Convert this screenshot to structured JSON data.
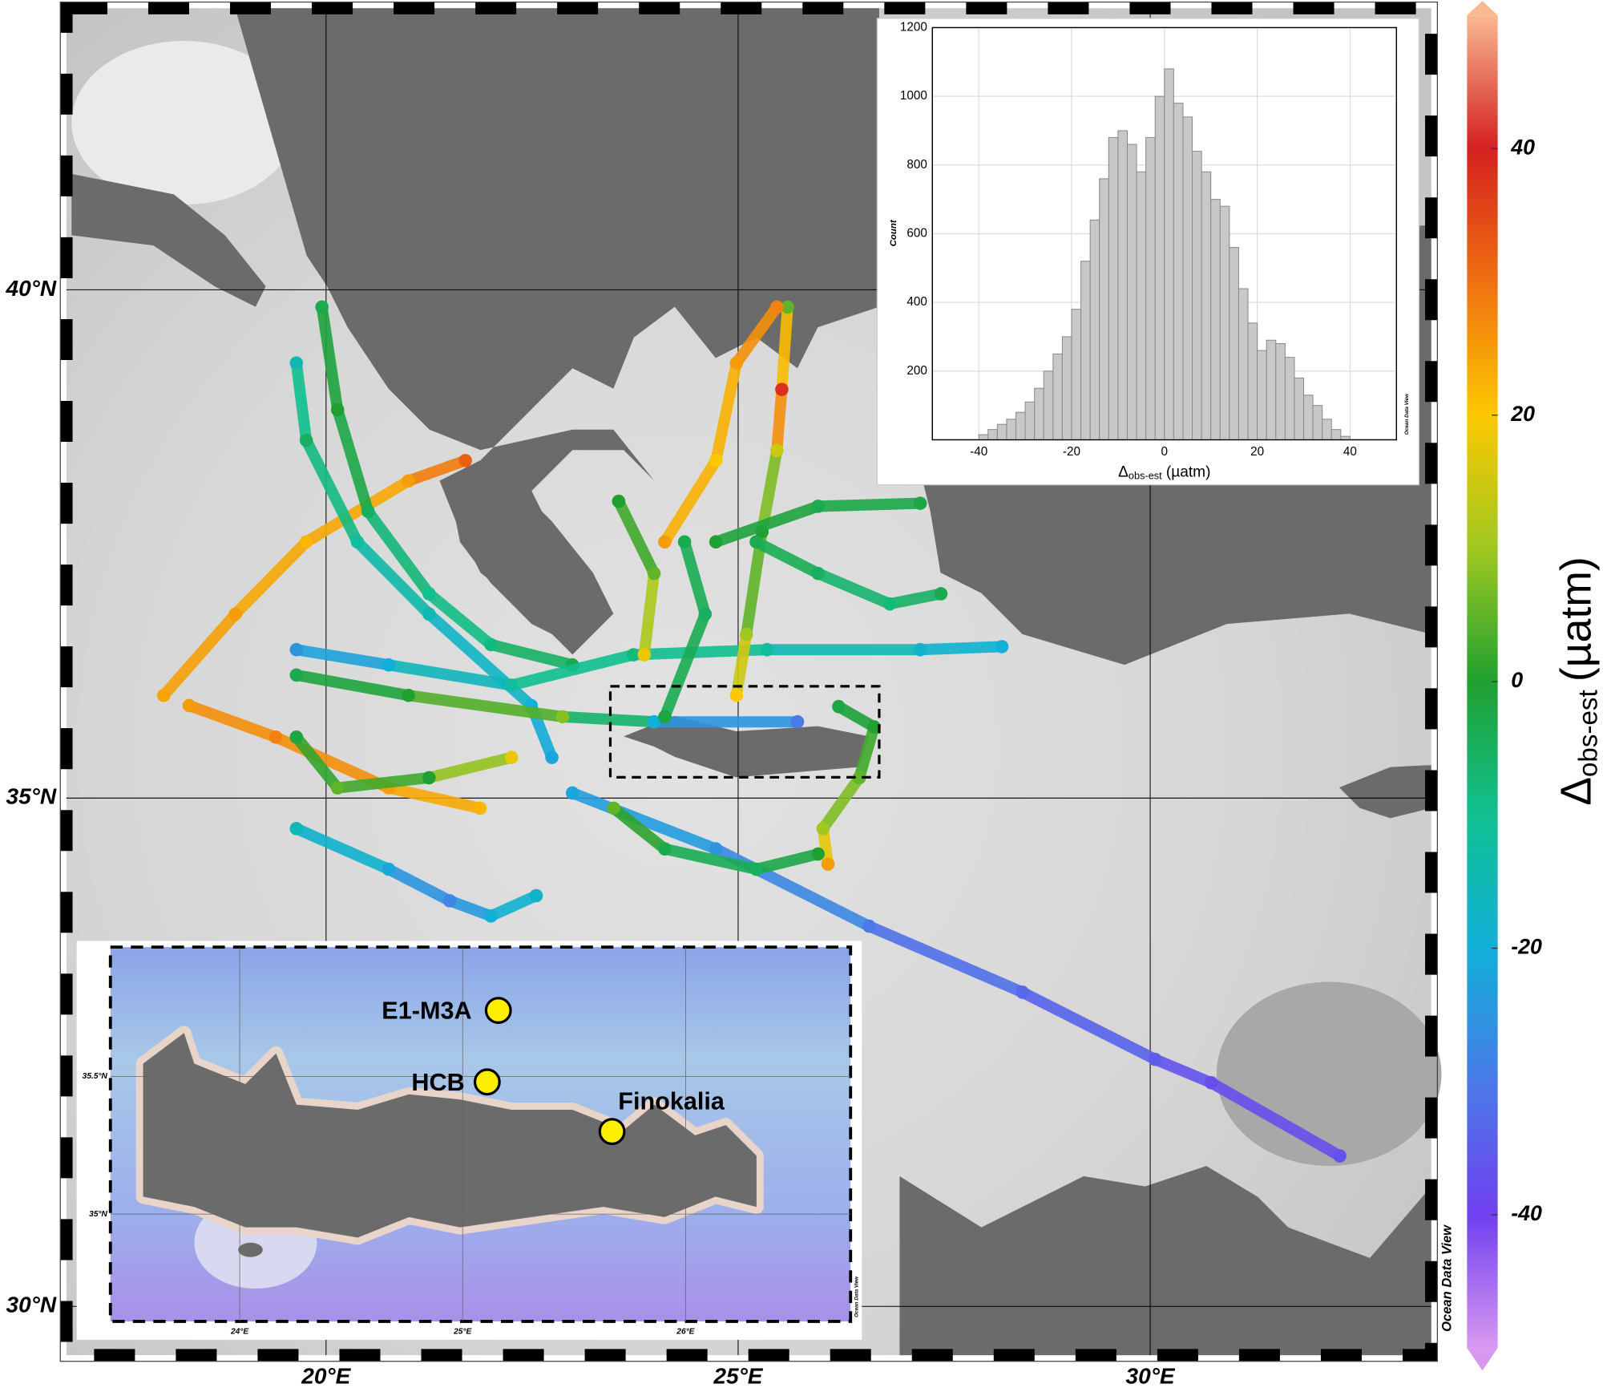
{
  "map": {
    "lonlim": [
      16.85,
      33.41
    ],
    "latlim": [
      29.52,
      42.77
    ],
    "lonticks": [
      {
        "value": 20,
        "label": "20°E"
      },
      {
        "value": 25,
        "label": "25°E"
      },
      {
        "value": 30,
        "label": "30°E"
      }
    ],
    "latticks": [
      {
        "value": 30,
        "label": "30°N"
      },
      {
        "value": 35,
        "label": "35°N"
      },
      {
        "value": 40,
        "label": "40°N"
      }
    ],
    "credit": "Ocean Data View",
    "tracks": [
      {
        "lon": [
          22.99,
          24.73,
          26.59,
          28.45,
          30.06,
          30.74,
          32.3
        ],
        "lat": [
          35.05,
          34.5,
          33.74,
          33.09,
          32.43,
          32.2,
          31.48
        ],
        "values": [
          -22,
          -25,
          -30,
          -33,
          -35,
          -38,
          -37
        ]
      },
      {
        "lon": [
          21.69,
          21.0,
          19.76,
          18.9,
          18.03
        ],
        "lat": [
          38.32,
          38.12,
          37.52,
          36.81,
          36.01
        ],
        "values": [
          32,
          25,
          22,
          25,
          24
        ]
      },
      {
        "lon": [
          18.34,
          19.39,
          20.76,
          21.87
        ],
        "lat": [
          35.91,
          35.6,
          35.1,
          34.9
        ],
        "values": [
          25,
          28,
          25,
          22
        ]
      },
      {
        "lon": [
          19.95,
          20.14,
          20.51,
          21.25,
          22.0,
          22.99
        ],
        "lat": [
          39.83,
          38.82,
          37.82,
          37.01,
          36.51,
          36.31
        ],
        "values": [
          -3,
          0,
          -5,
          -10,
          -8,
          -3
        ]
      },
      {
        "lon": [
          19.64,
          19.76,
          20.38,
          21.25,
          22.49,
          22.74
        ],
        "lat": [
          39.28,
          38.52,
          37.52,
          36.81,
          35.91,
          35.4
        ],
        "values": [
          -15,
          -5,
          -12,
          -15,
          -20,
          -22
        ]
      },
      {
        "lon": [
          19.64,
          20.76,
          22.25,
          23.73,
          25.35,
          27.21,
          28.2
        ],
        "lat": [
          36.46,
          36.31,
          36.11,
          36.41,
          36.46,
          36.46,
          36.49
        ],
        "values": [
          -25,
          -20,
          -12,
          -8,
          -12,
          -18,
          -20
        ]
      },
      {
        "lon": [
          19.64,
          21.0,
          22.87,
          23.98,
          25.72
        ],
        "lat": [
          36.21,
          36.01,
          35.8,
          35.75,
          35.75
        ],
        "values": [
          -3,
          0,
          8,
          -20,
          -30
        ]
      },
      {
        "lon": [
          19.64,
          20.14,
          21.25,
          22.25
        ],
        "lat": [
          35.6,
          35.1,
          35.2,
          35.4
        ],
        "values": [
          -2,
          5,
          0,
          18
        ]
      },
      {
        "lon": [
          19.64,
          20.76,
          21.5,
          22.0,
          22.55
        ],
        "lat": [
          34.7,
          34.3,
          33.99,
          33.84,
          34.04
        ],
        "values": [
          -15,
          -22,
          -28,
          -20,
          -18
        ]
      },
      {
        "lon": [
          25.6,
          25.53,
          25.47,
          25.29,
          25.1,
          24.98
        ],
        "lat": [
          39.83,
          39.02,
          38.42,
          37.62,
          36.61,
          36.01
        ],
        "values": [
          5,
          38,
          15,
          0,
          10,
          20
        ]
      },
      {
        "lon": [
          25.47,
          24.98,
          24.73,
          24.11
        ],
        "lat": [
          39.83,
          39.28,
          38.32,
          37.52
        ],
        "values": [
          28,
          25,
          20,
          25
        ]
      },
      {
        "lon": [
          23.55,
          23.98,
          23.86
        ],
        "lat": [
          37.92,
          37.21,
          36.41
        ],
        "values": [
          0,
          5,
          18
        ]
      },
      {
        "lon": [
          25.22,
          25.97,
          26.84,
          27.46
        ],
        "lat": [
          37.52,
          37.21,
          36.91,
          37.01
        ],
        "values": [
          -3,
          -5,
          -8,
          -3
        ]
      },
      {
        "lon": [
          24.73,
          25.97,
          27.21
        ],
        "lat": [
          37.52,
          37.87,
          37.9
        ],
        "values": [
          0,
          -3,
          -2
        ]
      },
      {
        "lon": [
          26.22,
          26.65,
          26.47,
          26.03,
          26.09
        ],
        "lat": [
          35.9,
          35.7,
          35.2,
          34.7,
          34.35
        ],
        "values": [
          -2,
          0,
          5,
          10,
          25
        ]
      },
      {
        "lon": [
          23.49,
          24.11,
          25.22,
          25.97
        ],
        "lat": [
          34.9,
          34.5,
          34.3,
          34.45
        ],
        "values": [
          5,
          -3,
          -5,
          0
        ]
      },
      {
        "lon": [
          24.35,
          24.6,
          24.11
        ],
        "lat": [
          37.52,
          36.81,
          35.8
        ],
        "values": [
          -3,
          -5,
          -2
        ]
      }
    ]
  },
  "colorbar": {
    "title": "Δ",
    "title_subscript": "obs-est",
    "title_unit": "(µatm)",
    "lim": [
      -50,
      50
    ],
    "ticks": [
      -40,
      -20,
      0,
      20,
      40
    ],
    "colormap": [
      {
        "value": -50,
        "color": "#d898f0"
      },
      {
        "value": -40,
        "color": "#7040f0"
      },
      {
        "value": -30,
        "color": "#4a7ae8"
      },
      {
        "value": -20,
        "color": "#10b0d8"
      },
      {
        "value": -10,
        "color": "#10c090"
      },
      {
        "value": 0,
        "color": "#20a030"
      },
      {
        "value": 10,
        "color": "#a0c820"
      },
      {
        "value": 20,
        "color": "#fcc800"
      },
      {
        "value": 30,
        "color": "#f07010"
      },
      {
        "value": 40,
        "color": "#d42020"
      },
      {
        "value": 50,
        "color": "#f8b890"
      }
    ]
  },
  "chart_data": {
    "type": "histogram",
    "xlabel": "Δ",
    "xlabel_subscript": "obs-est",
    "xlabel_unit": "(µatm)",
    "ylabel": "Count",
    "bins": [
      -40,
      -38,
      -36,
      -34,
      -32,
      -30,
      -28,
      -26,
      -24,
      -22,
      -20,
      -18,
      -16,
      -14,
      -12,
      -10,
      -8,
      -6,
      -4,
      -2,
      0,
      2,
      4,
      6,
      8,
      10,
      12,
      14,
      16,
      18,
      20,
      22,
      24,
      26,
      28,
      30,
      32,
      34,
      36,
      38,
      40
    ],
    "values": [
      15,
      30,
      45,
      60,
      80,
      110,
      150,
      200,
      250,
      300,
      380,
      520,
      640,
      760,
      880,
      900,
      860,
      780,
      880,
      1000,
      1080,
      980,
      940,
      840,
      780,
      700,
      680,
      560,
      440,
      340,
      260,
      290,
      280,
      240,
      180,
      130,
      100,
      60,
      30,
      10
    ],
    "color": "#c8c8c8",
    "xlim": [
      -50,
      50
    ],
    "ylim": [
      0,
      1200
    ],
    "xticks": [
      -40,
      -20,
      0,
      20,
      40
    ],
    "yticks": [
      200,
      400,
      600,
      800,
      1000,
      1200
    ],
    "grid": true
  },
  "inset_map": {
    "lonlim": [
      23.42,
      26.74
    ],
    "latlim": [
      34.61,
      35.97
    ],
    "lonticks": [
      {
        "value": 24,
        "label": "24°E"
      },
      {
        "value": 25,
        "label": "25°E"
      },
      {
        "value": 26,
        "label": "26°E"
      }
    ],
    "latticks": [
      {
        "value": 35,
        "label": "35°N"
      },
      {
        "value": 35.5,
        "label": "35.5°N"
      }
    ],
    "stations": [
      {
        "name": "E1-M3A",
        "lon": 25.16,
        "lat": 35.74
      },
      {
        "name": "HCB",
        "lon": 25.11,
        "lat": 35.48
      },
      {
        "name": "Finokalia",
        "lon": 25.67,
        "lat": 35.3
      }
    ]
  }
}
